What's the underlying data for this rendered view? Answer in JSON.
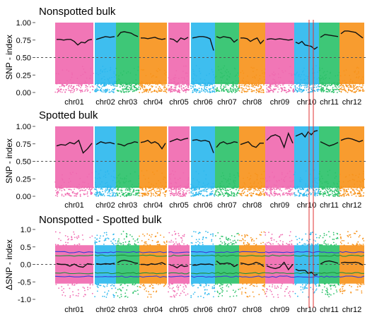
{
  "chart_data": [
    {
      "type": "scatter",
      "title": "Nonspotted bulk",
      "ylabel": "SNP - index",
      "ylim": [
        0,
        1
      ],
      "yticks": [
        "0.00",
        "0.25",
        "0.50",
        "0.75",
        "1.00"
      ],
      "ytick_values": [
        0,
        0.25,
        0.5,
        0.75,
        1
      ],
      "threshold_line": 0.5,
      "categories": [
        "chr01",
        "chr02",
        "chr03",
        "chr04",
        "chr05",
        "chr06",
        "chr07",
        "chr08",
        "chr09",
        "chr10",
        "chr11",
        "chr12"
      ],
      "series": [
        {
          "values": [
            [
              0.76,
              0.76,
              0.75,
              0.76,
              0.76,
              0.73,
              0.68,
              0.72,
              0.71,
              0.75,
              0.76
            ],
            [
              0.76,
              0.78,
              0.8,
              0.79,
              0.8
            ],
            [
              0.8,
              0.86,
              0.87,
              0.86,
              0.85,
              0.82,
              0.8
            ],
            [
              0.78,
              0.78,
              0.77,
              0.78,
              0.79,
              0.77,
              0.76,
              0.77
            ],
            [
              0.77,
              0.76,
              0.72,
              0.78,
              0.76,
              0.79
            ],
            [
              0.78,
              0.79,
              0.8,
              0.8,
              0.79,
              0.77,
              0.6
            ],
            [
              0.8,
              0.78,
              0.8,
              0.79,
              0.78,
              0.72,
              0.76
            ],
            [
              0.78,
              0.78,
              0.77,
              0.73,
              0.76,
              0.78,
              0.7,
              0.75
            ],
            [
              0.76,
              0.77,
              0.76,
              0.77,
              0.76,
              0.75,
              0.76
            ],
            [
              0.72,
              0.7,
              0.73,
              0.68,
              0.67,
              0.66,
              0.62,
              0.65
            ],
            [
              0.79,
              0.83,
              0.82,
              0.81,
              0.8
            ],
            [
              0.84,
              0.88,
              0.88,
              0.87,
              0.86,
              0.82,
              0.78
            ]
          ]
        }
      ]
    },
    {
      "type": "scatter",
      "title": "Spotted bulk",
      "ylabel": "SNP - index",
      "ylim": [
        0,
        1
      ],
      "yticks": [
        "0.00",
        "0.25",
        "0.50",
        "0.75",
        "1.00"
      ],
      "ytick_values": [
        0,
        0.25,
        0.5,
        0.75,
        1
      ],
      "threshold_line": 0.5,
      "categories": [
        "chr01",
        "chr02",
        "chr03",
        "chr04",
        "chr05",
        "chr06",
        "chr07",
        "chr08",
        "chr09",
        "chr10",
        "chr11",
        "chr12"
      ],
      "series": [
        {
          "values": [
            [
              0.72,
              0.74,
              0.73,
              0.77,
              0.75,
              0.8,
              0.62,
              0.68,
              0.76
            ],
            [
              0.74,
              0.78,
              0.76,
              0.77,
              0.75
            ],
            [
              0.75,
              0.74,
              0.72,
              0.75,
              0.76,
              0.78,
              0.77
            ],
            [
              0.77,
              0.78,
              0.8,
              0.76,
              0.78,
              0.75,
              0.68,
              0.76
            ],
            [
              0.78,
              0.8,
              0.82,
              0.8,
              0.82,
              0.83
            ],
            [
              0.8,
              0.81,
              0.79,
              0.8,
              0.78,
              0.62
            ],
            [
              0.7,
              0.76,
              0.78,
              0.75,
              0.76,
              0.78,
              0.77
            ],
            [
              0.74,
              0.76,
              0.78,
              0.72,
              0.7,
              0.76,
              0.76
            ],
            [
              0.8,
              0.86,
              0.88,
              0.85,
              0.7,
              0.9,
              0.76
            ],
            [
              0.86,
              0.88,
              0.9,
              0.85,
              0.92,
              0.88,
              0.93,
              0.94
            ],
            [
              0.78,
              0.75,
              0.72,
              0.74,
              0.77
            ],
            [
              0.8,
              0.82,
              0.83,
              0.82,
              0.8,
              0.78,
              0.8
            ]
          ]
        }
      ]
    },
    {
      "type": "scatter",
      "title": "Nonspotted - Spotted bulk",
      "ylabel": "ΔSNP - index",
      "ylim": [
        -1,
        1
      ],
      "yticks": [
        "-1.0",
        "-0.5",
        "0.0",
        "0.5",
        "1.0"
      ],
      "ytick_values": [
        -1,
        -0.5,
        0,
        0.5,
        1
      ],
      "threshold_line": 0,
      "categories": [
        "chr01",
        "chr02",
        "chr03",
        "chr04",
        "chr05",
        "chr06",
        "chr07",
        "chr08",
        "chr09",
        "chr10",
        "chr11",
        "chr12"
      ],
      "series": [
        {
          "values": [
            [
              0.02,
              0.0,
              0.0,
              -0.05,
              0.01,
              -0.06,
              -0.08,
              0.02,
              0.0
            ],
            [
              0.02,
              0.0,
              0.02,
              0.01,
              0.03
            ],
            [
              0.05,
              0.1,
              0.12,
              0.1,
              0.08,
              0.04,
              0.03
            ],
            [
              0.0,
              0.0,
              -0.02,
              0.02,
              0.0,
              0.02,
              0.05,
              0.0
            ],
            [
              -0.01,
              -0.04,
              -0.1,
              -0.02,
              -0.06,
              -0.04
            ],
            [
              -0.02,
              -0.02,
              0.01,
              0.0,
              0.01,
              -0.02
            ],
            [
              0.1,
              0.02,
              0.02,
              0.04,
              0.02,
              -0.06,
              -0.01
            ],
            [
              0.04,
              0.02,
              -0.01,
              0.01,
              0.06,
              0.02,
              -0.06
            ],
            [
              -0.04,
              -0.09,
              -0.12,
              -0.08,
              0.06,
              -0.15,
              0.0
            ],
            [
              -0.14,
              -0.18,
              -0.17,
              -0.17,
              -0.25,
              -0.22,
              -0.31,
              -0.29
            ],
            [
              0.01,
              0.08,
              0.1,
              0.07,
              0.03
            ],
            [
              0.04,
              0.06,
              0.05,
              0.05,
              0.06,
              0.04,
              -0.02
            ]
          ]
        }
      ],
      "confidence_bands": {
        "upper_outer": 0.35,
        "upper_inner": 0.25,
        "lower_inner": -0.25,
        "lower_outer": -0.35
      }
    }
  ],
  "colors": {
    "chr01": "#f06ab0",
    "chr02": "#2eb8ee",
    "chr03": "#2ec26b",
    "chr04": "#f7941d",
    "chr05": "#f06ab0",
    "chr06": "#2eb8ee",
    "chr07": "#2ec26b",
    "chr08": "#f7941d",
    "chr09": "#f06ab0",
    "chr10": "#2eb8ee",
    "chr11": "#2ec26b",
    "chr12": "#f7941d",
    "line": "#111111",
    "highlight": "#e03030",
    "threshold": "#555555"
  }
}
